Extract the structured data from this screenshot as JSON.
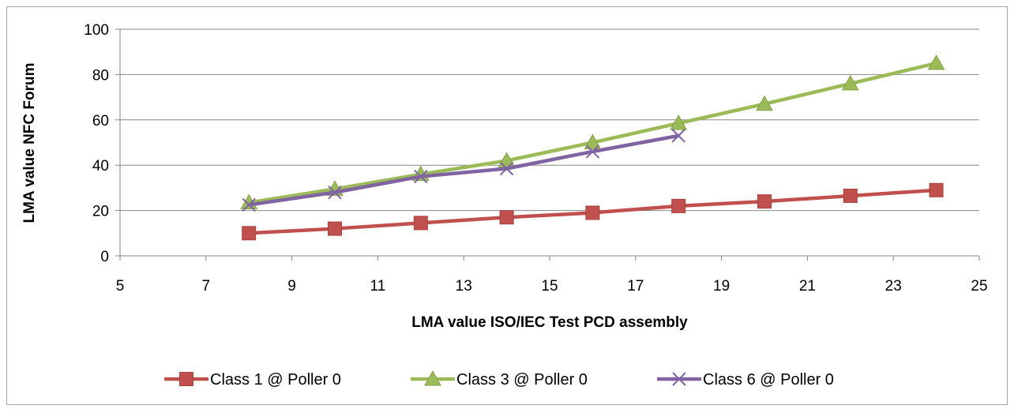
{
  "chart_data": {
    "type": "line",
    "title": "",
    "xlabel": "LMA value ISO/IEC Test PCD assembly",
    "ylabel": "LMA value NFC Forum",
    "xlim": [
      5,
      25
    ],
    "ylim": [
      0,
      100
    ],
    "x_ticks": [
      "5",
      "7",
      "9",
      "11",
      "13",
      "15",
      "17",
      "19",
      "21",
      "23",
      "25"
    ],
    "y_ticks": [
      "0",
      "20",
      "40",
      "60",
      "80",
      "100"
    ],
    "grid": "horizontal",
    "legend_position": "bottom",
    "series": [
      {
        "name": "Class 1 @ Poller 0",
        "color": "#c0504d",
        "marker": "square",
        "x": [
          8,
          10,
          12,
          14,
          16,
          18,
          20,
          22,
          24
        ],
        "y": [
          10,
          12,
          14.5,
          17,
          19,
          22,
          24,
          26.5,
          29
        ]
      },
      {
        "name": "Class 3 @ Poller 0",
        "color": "#9bbb59",
        "marker": "triangle",
        "x": [
          8,
          10,
          12,
          14,
          16,
          18,
          20,
          22,
          24
        ],
        "y": [
          23.5,
          29.5,
          36,
          42,
          50,
          58.5,
          67,
          76,
          85
        ]
      },
      {
        "name": "Class 6 @ Poller 0",
        "color": "#8064a2",
        "marker": "x",
        "x": [
          8,
          10,
          12,
          14,
          16,
          18
        ],
        "y": [
          22.5,
          28,
          35,
          38.5,
          46,
          53
        ]
      }
    ]
  }
}
